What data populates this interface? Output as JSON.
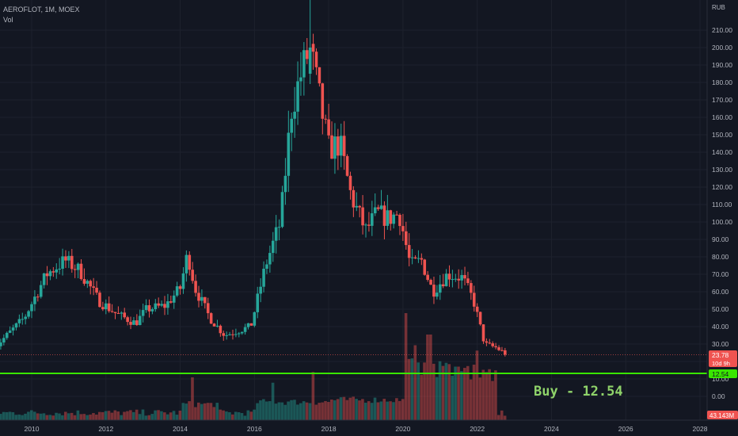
{
  "header": {
    "symbol": "AEROFLOT, 1M, MOEX",
    "volume_label": "Vol",
    "currency": "RUB"
  },
  "price_axis": {
    "ticks": [
      "210.00",
      "200.00",
      "190.00",
      "180.00",
      "170.00",
      "160.00",
      "150.00",
      "140.00",
      "130.00",
      "120.00",
      "110.00",
      "100.00",
      "90.00",
      "80.00",
      "70.00",
      "60.00",
      "50.00",
      "40.00",
      "30.00",
      "20.00",
      "10.00",
      "0.00"
    ],
    "current_price": "23.78",
    "countdown": "10d 9h",
    "buy_level": "12.54",
    "volume_readout": "43.143M"
  },
  "time_axis": {
    "ticks": [
      "2010",
      "2012",
      "2014",
      "2016",
      "2018",
      "2020",
      "2022",
      "2024",
      "2026",
      "2028"
    ]
  },
  "annotation": {
    "text": "Buy  -  12.54"
  },
  "colors": {
    "up": "#26a69a",
    "down": "#ef5350",
    "buy_line": "#39e600",
    "background": "#131722",
    "grid": "#1e222d"
  },
  "chart_data": {
    "type": "candlestick",
    "interval": "1M",
    "x_range": [
      2009.0,
      2028.0
    ],
    "y_range": [
      -15,
      220
    ],
    "anchors": [
      {
        "t": 2009.0,
        "close": 28
      },
      {
        "t": 2009.8,
        "close": 45
      },
      {
        "t": 2010.4,
        "close": 70
      },
      {
        "t": 2010.9,
        "close": 78
      },
      {
        "t": 2011.3,
        "close": 72
      },
      {
        "t": 2011.8,
        "close": 55
      },
      {
        "t": 2012.3,
        "close": 47
      },
      {
        "t": 2012.8,
        "close": 42
      },
      {
        "t": 2013.1,
        "close": 50
      },
      {
        "t": 2013.6,
        "close": 52
      },
      {
        "t": 2014.0,
        "close": 62
      },
      {
        "t": 2014.2,
        "close": 82
      },
      {
        "t": 2014.4,
        "close": 62
      },
      {
        "t": 2014.8,
        "close": 45
      },
      {
        "t": 2015.2,
        "close": 35
      },
      {
        "t": 2015.6,
        "close": 38
      },
      {
        "t": 2015.9,
        "close": 40
      },
      {
        "t": 2016.3,
        "close": 75
      },
      {
        "t": 2016.7,
        "close": 100
      },
      {
        "t": 2017.0,
        "close": 165
      },
      {
        "t": 2017.3,
        "close": 188
      },
      {
        "t": 2017.5,
        "close": 200
      },
      {
        "t": 2017.8,
        "close": 165
      },
      {
        "t": 2018.0,
        "close": 142
      },
      {
        "t": 2018.3,
        "close": 145
      },
      {
        "t": 2018.6,
        "close": 115
      },
      {
        "t": 2019.0,
        "close": 95
      },
      {
        "t": 2019.3,
        "close": 105
      },
      {
        "t": 2019.6,
        "close": 102
      },
      {
        "t": 2019.9,
        "close": 105
      },
      {
        "t": 2020.2,
        "close": 75
      },
      {
        "t": 2020.5,
        "close": 78
      },
      {
        "t": 2020.8,
        "close": 60
      },
      {
        "t": 2021.2,
        "close": 70
      },
      {
        "t": 2021.6,
        "close": 68
      },
      {
        "t": 2021.9,
        "close": 55
      },
      {
        "t": 2022.2,
        "close": 30
      },
      {
        "t": 2022.5,
        "close": 28
      },
      {
        "t": 2022.8,
        "close": 24
      }
    ],
    "volume_spikes": [
      {
        "t": 2014.3,
        "level": 0.4
      },
      {
        "t": 2016.5,
        "level": 0.35
      },
      {
        "t": 2017.6,
        "level": 0.45
      },
      {
        "t": 2020.1,
        "level": 1.0
      },
      {
        "t": 2020.3,
        "level": 0.7
      },
      {
        "t": 2020.7,
        "level": 0.8
      },
      {
        "t": 2021.0,
        "level": 0.55
      },
      {
        "t": 2021.4,
        "level": 0.5
      },
      {
        "t": 2022.0,
        "level": 0.65
      }
    ]
  }
}
